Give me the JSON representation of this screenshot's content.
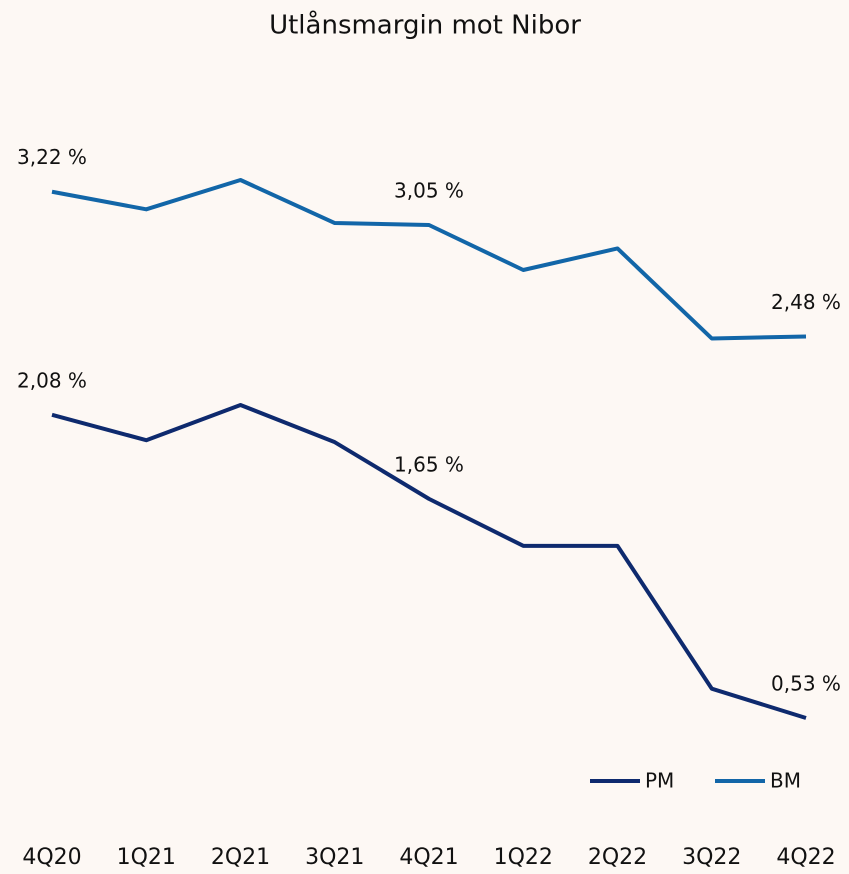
{
  "chart_data": {
    "type": "line",
    "title": "Utlånsmargin mot Nibor",
    "categories": [
      "4Q20",
      "1Q21",
      "2Q21",
      "3Q21",
      "4Q21",
      "1Q22",
      "2Q22",
      "3Q22",
      "4Q22"
    ],
    "series": [
      {
        "name": "PM",
        "color": "#0e2a6e",
        "values": [
          2.08,
          1.95,
          2.13,
          1.94,
          1.65,
          1.41,
          1.41,
          0.68,
          0.53
        ],
        "value_labels": [
          "2,08 %",
          null,
          null,
          null,
          "1,65 %",
          null,
          null,
          null,
          "0,53 %"
        ]
      },
      {
        "name": "BM",
        "color": "#1266a8",
        "values": [
          3.22,
          3.13,
          3.28,
          3.06,
          3.05,
          2.82,
          2.93,
          2.47,
          2.48
        ],
        "value_labels": [
          "3,22 %",
          null,
          null,
          null,
          "3,05 %",
          null,
          null,
          null,
          "2,48 %"
        ]
      }
    ],
    "legend": "lower right"
  }
}
